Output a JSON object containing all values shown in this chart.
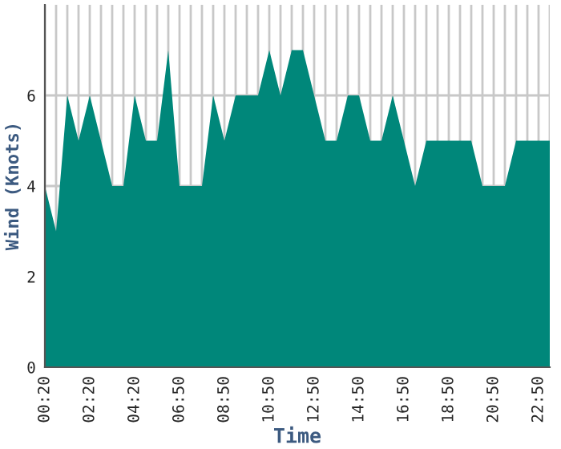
{
  "chart_data": {
    "type": "area",
    "xlabel": "Time",
    "ylabel": "Wind (Knots)",
    "categories": [
      "00:20",
      null,
      null,
      null,
      "02:20",
      null,
      null,
      null,
      "04:20",
      null,
      null,
      null,
      "06:50",
      null,
      null,
      null,
      "08:50",
      null,
      null,
      null,
      "10:50",
      null,
      null,
      null,
      "12:50",
      null,
      null,
      null,
      "14:50",
      null,
      null,
      null,
      "16:50",
      null,
      null,
      null,
      "18:50",
      null,
      null,
      null,
      "20:50",
      null,
      null,
      null,
      "22:50",
      null
    ],
    "series": [
      {
        "color": "#00877a",
        "values": [
          4,
          3,
          6,
          5,
          6,
          5,
          4,
          4,
          6,
          5,
          5,
          7,
          4,
          4,
          4,
          6,
          5,
          6,
          6,
          6,
          7,
          6,
          7,
          7,
          6,
          5,
          5,
          6,
          6,
          5,
          5,
          6,
          5,
          4,
          5,
          5,
          5,
          5,
          5,
          4,
          4,
          4,
          5,
          5,
          5,
          5
        ]
      }
    ],
    "ylim": [
      0,
      8
    ],
    "yticks": [
      0,
      2,
      4,
      6
    ],
    "grid": true
  }
}
